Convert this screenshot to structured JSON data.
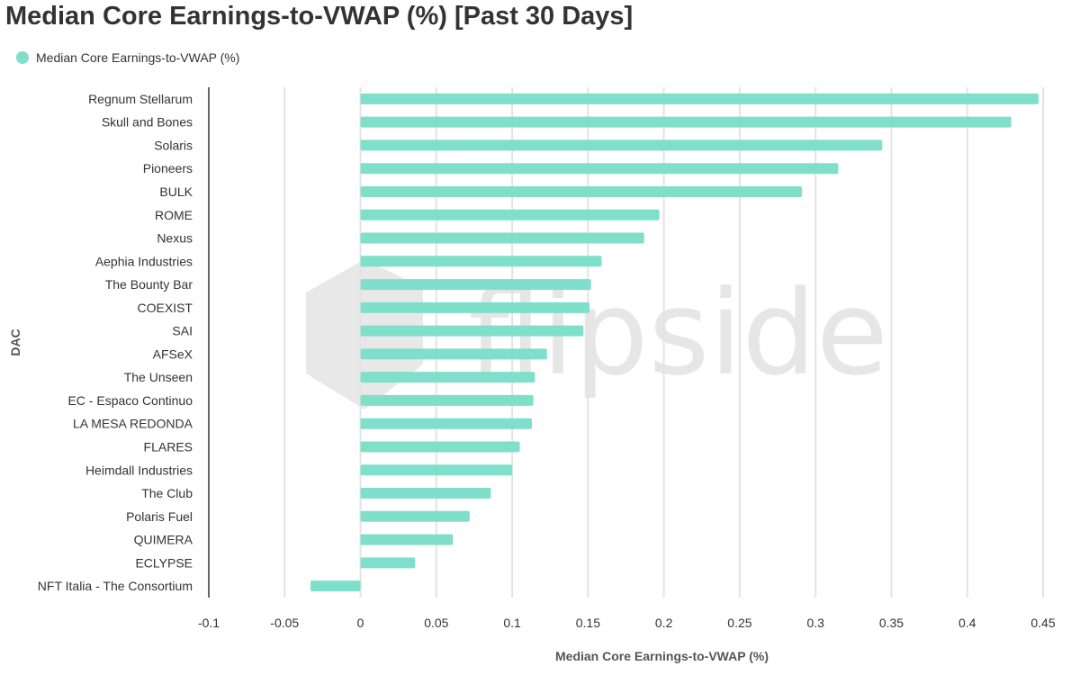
{
  "chart_data": {
    "type": "bar",
    "orientation": "horizontal",
    "title": "Median Core Earnings-to-VWAP (%) [Past 30 Days]",
    "xlabel": "Median Core Earnings-to-VWAP (%)",
    "ylabel": "DAC",
    "xlim": [
      -0.1,
      0.45
    ],
    "xticks": [
      -0.1,
      -0.05,
      0,
      0.05,
      0.1,
      0.15,
      0.2,
      0.25,
      0.3,
      0.35,
      0.4,
      0.45
    ],
    "grid": "vertical",
    "legend_position": "top-left",
    "categories": [
      "Regnum Stellarum",
      "Skull and Bones",
      "Solaris",
      "Pioneers",
      "BULK",
      "ROME",
      "Nexus",
      "Aephia Industries",
      "The Bounty Bar",
      "COEXIST",
      "SAI",
      "AFSeX",
      "The Unseen",
      "EC - Espaco Continuo",
      "LA MESA REDONDA",
      "FLARES",
      "Heimdall Industries",
      "The Club",
      "Polaris Fuel",
      "QUIMERA",
      "ECLYPSE",
      "NFT Italia - The Consortium"
    ],
    "series": [
      {
        "name": "Median Core Earnings-to-VWAP (%)",
        "color": "#7fdfca",
        "values": [
          0.447,
          0.429,
          0.344,
          0.315,
          0.291,
          0.197,
          0.187,
          0.159,
          0.152,
          0.151,
          0.147,
          0.123,
          0.115,
          0.114,
          0.113,
          0.105,
          0.1,
          0.086,
          0.072,
          0.061,
          0.036,
          -0.033
        ]
      }
    ]
  },
  "watermark": {
    "text": "flipside"
  }
}
